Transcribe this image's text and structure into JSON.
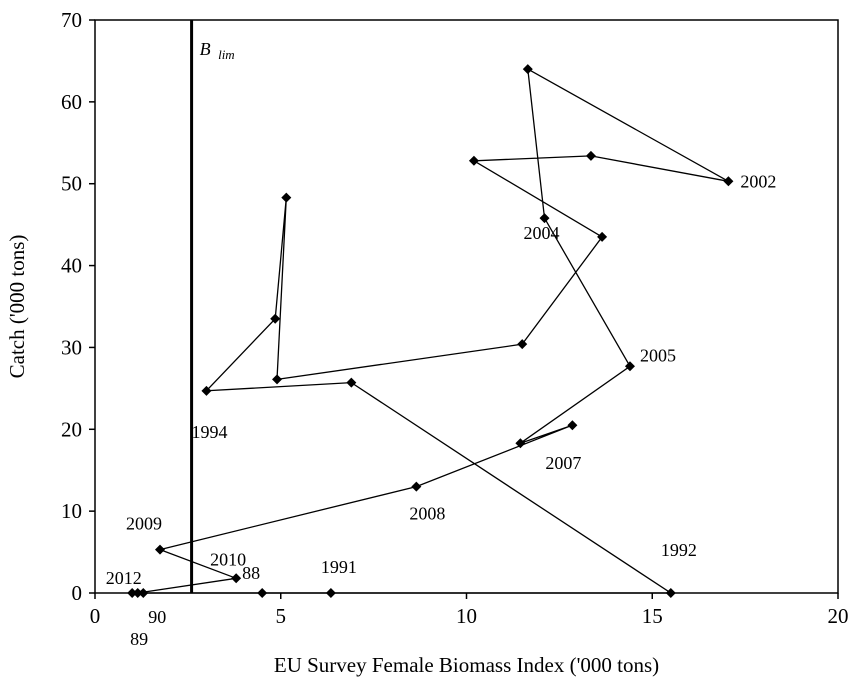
{
  "chart_data": {
    "type": "scatter",
    "connected": true,
    "title": "",
    "xlabel": "EU Survey Female Biomass Index ('000 tons)",
    "ylabel": "Catch ('000 tons)",
    "xlim": [
      0,
      20
    ],
    "ylim": [
      0,
      70
    ],
    "xticks": [
      0,
      5,
      10,
      15,
      20
    ],
    "yticks": [
      0,
      10,
      20,
      30,
      40,
      50,
      60,
      70
    ],
    "xtick_labels": [
      "0",
      "5",
      "10",
      "15",
      "20"
    ],
    "ytick_labels": [
      "0",
      "10",
      "20",
      "30",
      "40",
      "50",
      "60",
      "70"
    ],
    "grid": false,
    "marker": "diamond",
    "color": "#000000",
    "reference_line": {
      "label_main": "B",
      "label_sub": "lim",
      "x": 2.6
    },
    "points": [
      {
        "x": 1.0,
        "y": 0.0
      },
      {
        "x": 1.3,
        "y": 0.0
      },
      {
        "x": 4.5,
        "y": 0.0
      },
      {
        "x": 6.35,
        "y": 0.0
      },
      {
        "x": 15.5,
        "y": 0.0
      },
      {
        "x": 6.9,
        "y": 25.7
      },
      {
        "x": 3.0,
        "y": 24.7
      },
      {
        "x": 4.85,
        "y": 33.5
      },
      {
        "x": 5.15,
        "y": 48.3
      },
      {
        "x": 4.9,
        "y": 26.1
      },
      {
        "x": 11.5,
        "y": 30.4
      },
      {
        "x": 13.65,
        "y": 43.5
      },
      {
        "x": 10.2,
        "y": 52.8
      },
      {
        "x": 13.35,
        "y": 53.4
      },
      {
        "x": 17.05,
        "y": 50.3
      },
      {
        "x": 11.65,
        "y": 64.0
      },
      {
        "x": 12.1,
        "y": 45.8
      },
      {
        "x": 14.4,
        "y": 27.7
      },
      {
        "x": 11.45,
        "y": 18.3
      },
      {
        "x": 12.85,
        "y": 20.5
      },
      {
        "x": 8.65,
        "y": 13.0
      },
      {
        "x": 1.75,
        "y": 5.3
      },
      {
        "x": 3.8,
        "y": 1.8
      },
      {
        "x": 1.15,
        "y": 0.0
      }
    ],
    "annotations": [
      {
        "text": "88",
        "x": 4.5,
        "y": 0.0
      },
      {
        "text": "89",
        "x": 1.0,
        "y": 0.0
      },
      {
        "text": "90",
        "x": 1.3,
        "y": 0.0
      },
      {
        "text": "1991",
        "x": 6.35,
        "y": 0.0
      },
      {
        "text": "1992",
        "x": 15.5,
        "y": 0.0
      },
      {
        "text": "1994",
        "x": 3.0,
        "y": 24.7
      },
      {
        "text": "2002",
        "x": 17.05,
        "y": 50.3
      },
      {
        "text": "2004",
        "x": 12.1,
        "y": 45.8
      },
      {
        "text": "2005",
        "x": 14.4,
        "y": 27.7
      },
      {
        "text": "2007",
        "x": 12.85,
        "y": 20.5
      },
      {
        "text": "2008",
        "x": 8.65,
        "y": 13.0
      },
      {
        "text": "2009",
        "x": 1.75,
        "y": 5.3
      },
      {
        "text": "2010",
        "x": 3.8,
        "y": 1.8
      },
      {
        "text": "2012",
        "x": 1.15,
        "y": 0.0
      }
    ]
  }
}
